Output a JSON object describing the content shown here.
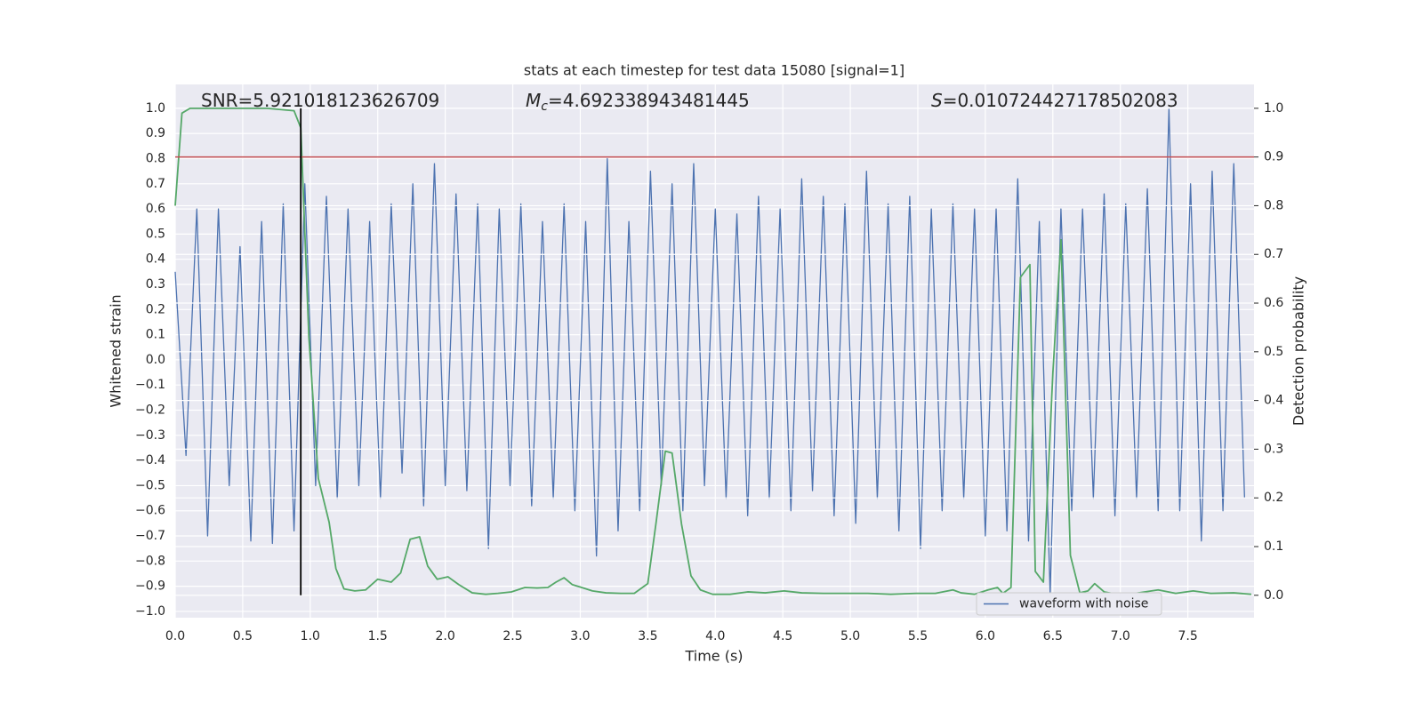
{
  "chart_data": {
    "type": "line",
    "title": "stats at each timestep for test data 15080 [signal=1]",
    "x_label": "Time (s)",
    "y_label": "Whitened strain",
    "y2_label": "Detection probability",
    "annotations": [
      {
        "text": "SNR=5.921018123626709"
      },
      {
        "symbol": "M",
        "subscript": "c",
        "text": "=4.692338943481445"
      },
      {
        "symbol": "S",
        "text": "=0.010724427178502083"
      }
    ],
    "xlim": [
      0,
      7.99
    ],
    "ylim": [
      -1.025,
      1.095
    ],
    "y2lim": [
      -0.046,
      1.049
    ],
    "xticks": [
      {
        "value": 0,
        "label": "0.0"
      },
      0.5,
      {
        "value": 1,
        "label": "1.0"
      },
      1.5,
      {
        "value": 2,
        "label": "2.0"
      },
      2.5,
      {
        "value": 3,
        "label": "3.0"
      },
      3.5,
      {
        "value": 4,
        "label": "4.0"
      },
      4.5,
      {
        "value": 5,
        "label": "5.0"
      },
      5.5,
      {
        "value": 6,
        "label": "6.0"
      },
      6.5,
      {
        "value": 7,
        "label": "7.0"
      },
      7.5
    ],
    "yticks": [
      {
        "value": -1,
        "label": "−1.0"
      },
      {
        "value": -0.9,
        "label": "−0.9"
      },
      {
        "value": -0.8,
        "label": "−0.8"
      },
      {
        "value": -0.7,
        "label": "−0.7"
      },
      {
        "value": -0.6,
        "label": "−0.6"
      },
      {
        "value": -0.5,
        "label": "−0.5"
      },
      {
        "value": -0.4,
        "label": "−0.4"
      },
      {
        "value": -0.3,
        "label": "−0.3"
      },
      {
        "value": -0.2,
        "label": "−0.2"
      },
      {
        "value": -0.1,
        "label": "−0.1"
      },
      {
        "value": 0,
        "label": "0.0"
      },
      0.1,
      0.2,
      0.3,
      0.4,
      0.5,
      0.6,
      0.7,
      0.8,
      0.9,
      {
        "value": 1,
        "label": "1.0"
      }
    ],
    "y2ticks": [
      {
        "value": 0,
        "label": "0.0"
      },
      0.1,
      0.2,
      0.3,
      0.4,
      0.5,
      0.6,
      0.7,
      0.8,
      0.9,
      {
        "value": 1,
        "label": "1.0"
      }
    ],
    "grid": true,
    "legend": "lower right",
    "series": [
      {
        "name": "waveform with noise",
        "color": "#4c72b0",
        "axis": "y",
        "x": [
          0,
          0.08,
          0.16,
          0.24,
          0.32,
          0.4,
          0.48,
          0.56,
          0.64,
          0.72,
          0.8,
          0.88,
          0.96,
          1.04,
          1.12,
          1.2,
          1.28,
          1.36,
          1.44,
          1.52,
          1.6,
          1.68,
          1.76,
          1.84,
          1.92,
          2.0,
          2.08,
          2.16,
          2.24,
          2.32,
          2.4,
          2.48,
          2.56,
          2.64,
          2.72,
          2.8,
          2.88,
          2.96,
          3.04,
          3.12,
          3.2,
          3.28,
          3.36,
          3.44,
          3.52,
          3.6,
          3.68,
          3.76,
          3.84,
          3.92,
          4.0,
          4.08,
          4.16,
          4.24,
          4.32,
          4.4,
          4.48,
          4.56,
          4.64,
          4.72,
          4.8,
          4.88,
          4.96,
          5.04,
          5.12,
          5.2,
          5.28,
          5.36,
          5.44,
          5.52,
          5.6,
          5.68,
          5.76,
          5.84,
          5.92,
          6.0,
          6.08,
          6.16,
          6.24,
          6.32,
          6.4,
          6.48,
          6.56,
          6.64,
          6.72,
          6.8,
          6.88,
          6.96,
          7.04,
          7.12,
          7.2,
          7.28,
          7.36,
          7.44,
          7.52,
          7.6,
          7.68,
          7.76,
          7.84,
          7.92
        ],
        "values": [
          0.35,
          -0.38,
          0.6,
          -0.7,
          0.6,
          -0.5,
          0.45,
          -0.72,
          0.55,
          -0.73,
          0.62,
          -0.68,
          0.7,
          -0.5,
          0.65,
          -0.55,
          0.6,
          -0.5,
          0.55,
          -0.55,
          0.62,
          -0.45,
          0.7,
          -0.58,
          0.78,
          -0.5,
          0.66,
          -0.52,
          0.62,
          -0.75,
          0.6,
          -0.5,
          0.62,
          -0.58,
          0.55,
          -0.55,
          0.62,
          -0.6,
          0.55,
          -0.78,
          0.8,
          -0.68,
          0.55,
          -0.6,
          0.75,
          -0.5,
          0.7,
          -0.6,
          0.78,
          -0.5,
          0.6,
          -0.55,
          0.58,
          -0.62,
          0.65,
          -0.55,
          0.6,
          -0.6,
          0.72,
          -0.52,
          0.65,
          -0.62,
          0.62,
          -0.65,
          0.75,
          -0.55,
          0.62,
          -0.68,
          0.65,
          -0.75,
          0.6,
          -0.6,
          0.62,
          -0.55,
          0.6,
          -0.7,
          0.6,
          -0.68,
          0.72,
          -0.72,
          0.55,
          -0.93,
          0.6,
          -0.6,
          0.6,
          -0.55,
          0.66,
          -0.62,
          0.62,
          -0.55,
          0.68,
          -0.6,
          1.0,
          -0.6,
          0.7,
          -0.72,
          0.75,
          -0.6,
          0.78,
          -0.55
        ]
      },
      {
        "color": "#55a868",
        "axis": "y2",
        "x": [
          0,
          0.05,
          0.11,
          0.68,
          0.88,
          0.93,
          0.99,
          1.06,
          1.14,
          1.19,
          1.25,
          1.33,
          1.41,
          1.5,
          1.6,
          1.67,
          1.74,
          1.81,
          1.87,
          1.94,
          2.02,
          2.1,
          2.2,
          2.3,
          2.39,
          2.49,
          2.59,
          2.68,
          2.76,
          2.82,
          2.88,
          2.94,
          3.01,
          3.09,
          3.19,
          3.3,
          3.4,
          3.5,
          3.56,
          3.63,
          3.68,
          3.75,
          3.82,
          3.89,
          3.98,
          4.11,
          4.24,
          4.37,
          4.51,
          4.64,
          4.8,
          4.97,
          5.13,
          5.3,
          5.49,
          5.63,
          5.76,
          5.82,
          5.92,
          6.02,
          6.09,
          6.13,
          6.19,
          6.26,
          6.33,
          6.37,
          6.43,
          6.5,
          6.56,
          6.63,
          6.7,
          6.76,
          6.81,
          6.88,
          6.98,
          7.11,
          7.28,
          7.41,
          7.54,
          7.67,
          7.84,
          7.97
        ],
        "values": [
          0.8,
          0.99,
          1.0,
          1.0,
          0.995,
          0.96,
          0.53,
          0.24,
          0.15,
          0.055,
          0.013,
          0.009,
          0.011,
          0.033,
          0.027,
          0.046,
          0.115,
          0.12,
          0.06,
          0.033,
          0.038,
          0.022,
          0.005,
          0.002,
          0.004,
          0.007,
          0.016,
          0.015,
          0.016,
          0.027,
          0.036,
          0.022,
          0.016,
          0.009,
          0.005,
          0.004,
          0.004,
          0.024,
          0.146,
          0.296,
          0.292,
          0.146,
          0.04,
          0.011,
          0.002,
          0.002,
          0.007,
          0.005,
          0.009,
          0.005,
          0.004,
          0.004,
          0.004,
          0.002,
          0.004,
          0.004,
          0.011,
          0.005,
          0.002,
          0.011,
          0.016,
          0.004,
          0.016,
          0.653,
          0.679,
          0.049,
          0.027,
          0.456,
          0.73,
          0.082,
          0.005,
          0.009,
          0.024,
          0.007,
          0.002,
          0.004,
          0.011,
          0.004,
          0.009,
          0.004,
          0.005,
          0.002
        ]
      }
    ],
    "hline": {
      "y": 0.9,
      "axis": "y2",
      "color": "#c44e52"
    },
    "vline": {
      "x": 0.93,
      "ymin": 0,
      "ymax": 1,
      "axis": "y2",
      "color": "#000000"
    }
  }
}
